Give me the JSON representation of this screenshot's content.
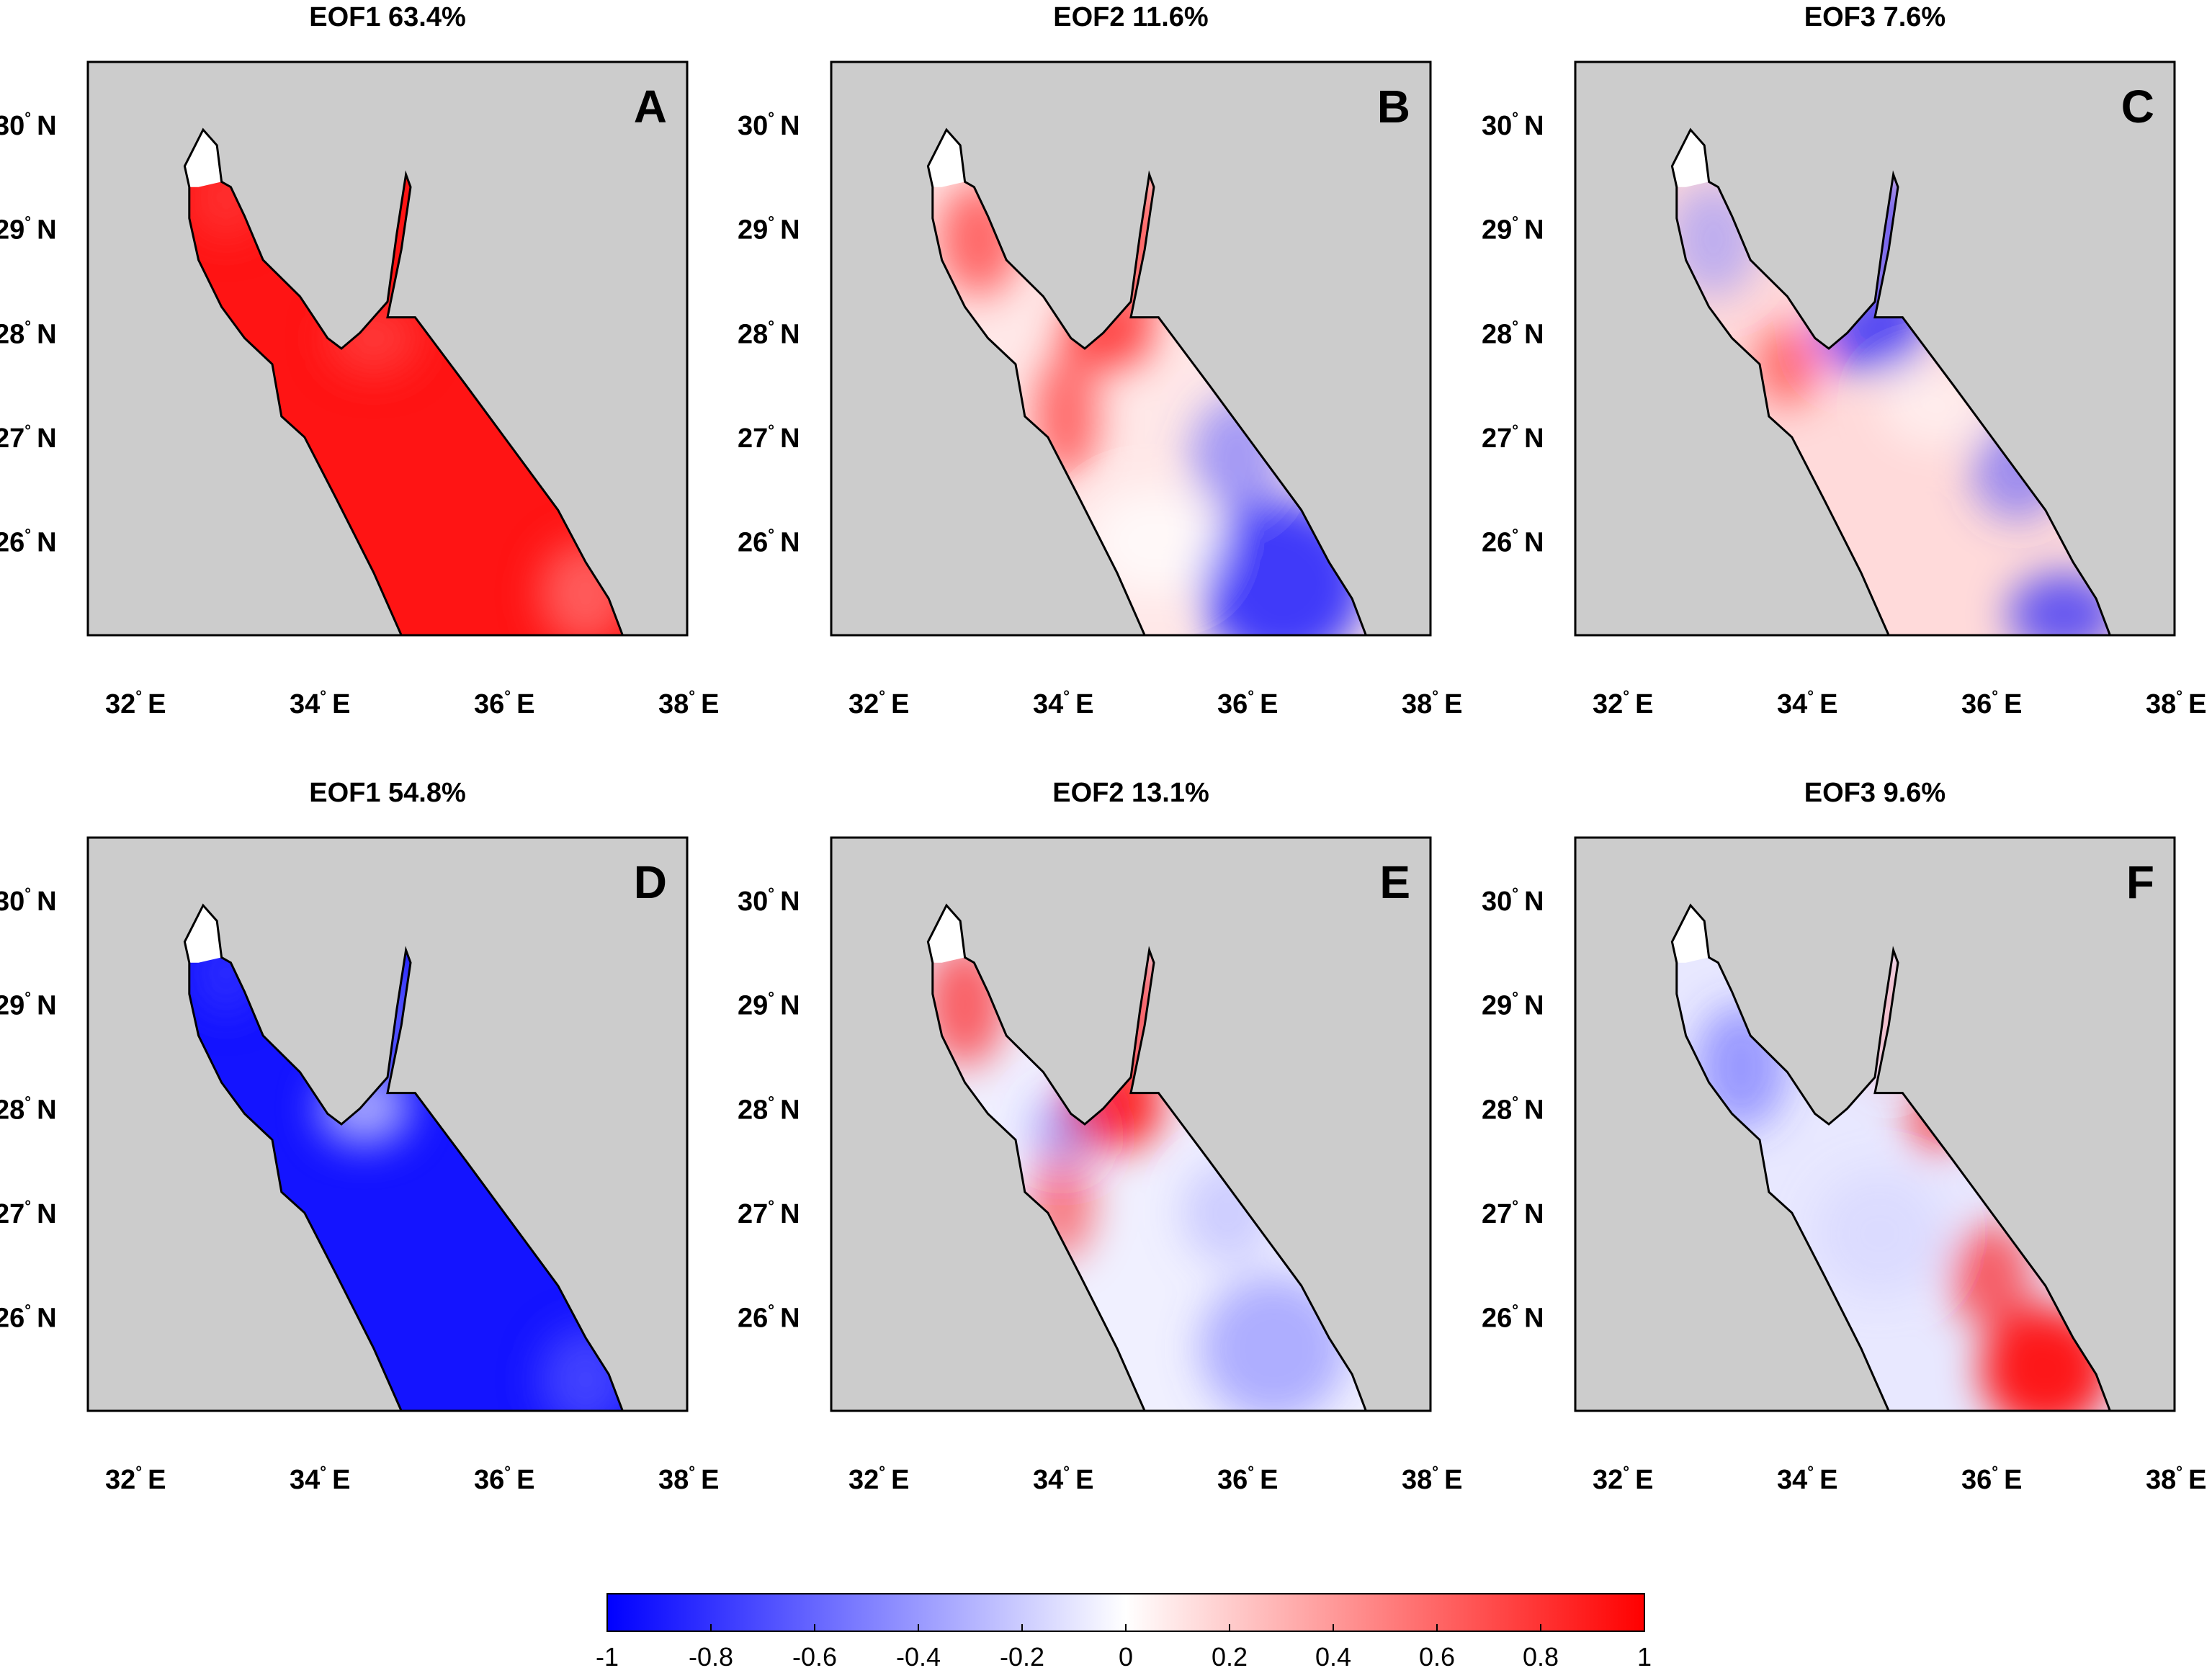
{
  "chart_data": {
    "type": "map",
    "description_fields_only": true,
    "lat_ticks": [
      "30",
      "29",
      "28",
      "27",
      "26"
    ],
    "lon_ticks": [
      "32",
      "34",
      "36",
      "38"
    ],
    "lat_suffix": "N",
    "lon_suffix": "E",
    "degree_symbol": "°",
    "lon_range": [
      31.5,
      38.0
    ],
    "lat_range": [
      25.1,
      30.6
    ],
    "panels": [
      {
        "letter": "A",
        "title": "EOF1  63.4%",
        "mode": "EOF1",
        "variance_pct": 63.4
      },
      {
        "letter": "B",
        "title": "EOF2  11.6%",
        "mode": "EOF2",
        "variance_pct": 11.6
      },
      {
        "letter": "C",
        "title": "EOF3  7.6%",
        "mode": "EOF3",
        "variance_pct": 7.6
      },
      {
        "letter": "D",
        "title": "EOF1  54.8%",
        "mode": "EOF1",
        "variance_pct": 54.8
      },
      {
        "letter": "E",
        "title": "EOF2  13.1%",
        "mode": "EOF2",
        "variance_pct": 13.1
      },
      {
        "letter": "F",
        "title": "EOF3  9.6%",
        "mode": "EOF3",
        "variance_pct": 9.6
      }
    ],
    "colorbar": {
      "min": -1,
      "max": 1,
      "ticks": [
        -1,
        -0.8,
        -0.6,
        -0.4,
        -0.2,
        0,
        0.2,
        0.4,
        0.6,
        0.8,
        1
      ],
      "tick_labels": [
        "-1",
        "-0.8",
        "-0.6",
        "-0.4",
        "-0.2",
        "0",
        "0.2",
        "0.4",
        "0.6",
        "0.8",
        "1"
      ],
      "colors": {
        "low": "#0000ff",
        "mid": "#ffffff",
        "high": "#ff0000"
      }
    },
    "colors": {
      "land": "#cccccc",
      "border": "#000000",
      "background": "#ffffff"
    }
  }
}
